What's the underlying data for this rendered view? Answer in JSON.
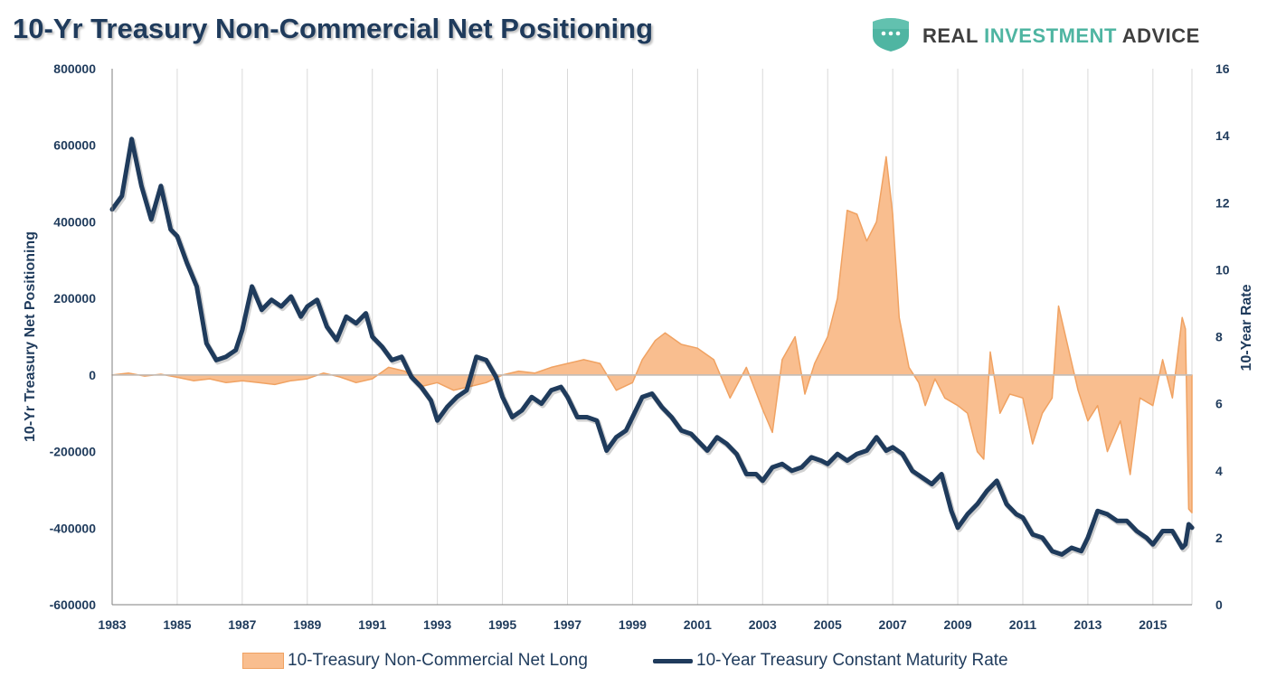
{
  "header": {
    "title": "10-Yr Treasury Non-Commercial Net Positioning",
    "brand": {
      "word1": "REAL",
      "word2": "INVESTMENT",
      "word3": "ADVICE"
    }
  },
  "colors": {
    "navy": "#1f3b5c",
    "orange_fill": "#f9be8f",
    "orange_line": "#f0a262",
    "grid": "#d9d9d9",
    "brand_teal": "#4fb5a2"
  },
  "chart_data": {
    "type": "area",
    "title": "10-Yr Treasury Non-Commercial Net Positioning",
    "ylabel_left": "10-Yr Treasury Net Positioning",
    "ylabel_right": "10-Year Rate",
    "xlim": [
      1983,
      2016.2
    ],
    "ylim_left": [
      -600000,
      800000
    ],
    "ylim_right": [
      0,
      16
    ],
    "x_ticks": [
      "1983",
      "1985",
      "1987",
      "1989",
      "1991",
      "1993",
      "1995",
      "1997",
      "1999",
      "2001",
      "2003",
      "2005",
      "2007",
      "2009",
      "2011",
      "2013",
      "2015"
    ],
    "y_ticks_left": [
      "800000",
      "600000",
      "400000",
      "200000",
      "0",
      "-200000",
      "-400000",
      "-600000"
    ],
    "y_ticks_right": [
      "16",
      "14",
      "12",
      "10",
      "8",
      "6",
      "4",
      "2",
      "0"
    ],
    "series": [
      {
        "name": "10-Treasury Non-Commercial Net Long",
        "axis": "left",
        "style": "area",
        "x": [
          1983.0,
          1983.5,
          1984.0,
          1984.5,
          1985.0,
          1985.5,
          1986.0,
          1986.5,
          1987.0,
          1987.5,
          1988.0,
          1988.5,
          1989.0,
          1989.5,
          1990.0,
          1990.5,
          1991.0,
          1991.5,
          1992.0,
          1992.5,
          1993.0,
          1993.5,
          1994.0,
          1994.5,
          1995.0,
          1995.5,
          1996.0,
          1996.5,
          1997.0,
          1997.5,
          1998.0,
          1998.5,
          1999.0,
          1999.3,
          1999.7,
          2000.0,
          2000.5,
          2001.0,
          2001.5,
          2002.0,
          2002.5,
          2003.0,
          2003.3,
          2003.6,
          2004.0,
          2004.3,
          2004.6,
          2005.0,
          2005.3,
          2005.6,
          2005.9,
          2006.2,
          2006.5,
          2006.8,
          2007.0,
          2007.2,
          2007.5,
          2007.8,
          2008.0,
          2008.3,
          2008.6,
          2009.0,
          2009.3,
          2009.6,
          2009.8,
          2010.0,
          2010.3,
          2010.6,
          2011.0,
          2011.3,
          2011.6,
          2011.9,
          2012.1,
          2012.4,
          2012.7,
          2013.0,
          2013.3,
          2013.6,
          2014.0,
          2014.3,
          2014.6,
          2015.0,
          2015.3,
          2015.6,
          2015.9,
          2016.0,
          2016.1,
          2016.2
        ],
        "y": [
          0,
          5000,
          -3000,
          2000,
          -6000,
          -15000,
          -10000,
          -20000,
          -15000,
          -20000,
          -25000,
          -15000,
          -10000,
          5000,
          -5000,
          -20000,
          -10000,
          20000,
          10000,
          -30000,
          -20000,
          -40000,
          -30000,
          -20000,
          0,
          10000,
          5000,
          20000,
          30000,
          40000,
          30000,
          -40000,
          -20000,
          40000,
          90000,
          110000,
          80000,
          70000,
          40000,
          -60000,
          20000,
          -90000,
          -150000,
          40000,
          100000,
          -50000,
          30000,
          100000,
          200000,
          430000,
          420000,
          350000,
          400000,
          570000,
          420000,
          150000,
          20000,
          -20000,
          -80000,
          -10000,
          -60000,
          -80000,
          -100000,
          -200000,
          -220000,
          60000,
          -100000,
          -50000,
          -60000,
          -180000,
          -100000,
          -60000,
          180000,
          70000,
          -40000,
          -120000,
          -80000,
          -200000,
          -120000,
          -260000,
          -60000,
          -80000,
          40000,
          -60000,
          150000,
          120000,
          -350000,
          -360000
        ]
      },
      {
        "name": "10-Year Treasury Constant Maturity Rate",
        "axis": "right",
        "style": "line",
        "x": [
          1983.0,
          1983.3,
          1983.6,
          1983.9,
          1984.2,
          1984.5,
          1984.8,
          1985.0,
          1985.3,
          1985.6,
          1985.9,
          1986.2,
          1986.5,
          1986.8,
          1987.0,
          1987.3,
          1987.6,
          1987.9,
          1988.2,
          1988.5,
          1988.8,
          1989.0,
          1989.3,
          1989.6,
          1989.9,
          1990.2,
          1990.5,
          1990.8,
          1991.0,
          1991.3,
          1991.6,
          1991.9,
          1992.2,
          1992.5,
          1992.8,
          1993.0,
          1993.3,
          1993.6,
          1993.9,
          1994.2,
          1994.5,
          1994.8,
          1995.0,
          1995.3,
          1995.6,
          1995.9,
          1996.2,
          1996.5,
          1996.8,
          1997.0,
          1997.3,
          1997.6,
          1997.9,
          1998.2,
          1998.5,
          1998.8,
          1999.0,
          1999.3,
          1999.6,
          1999.9,
          2000.2,
          2000.5,
          2000.8,
          2001.0,
          2001.3,
          2001.6,
          2001.9,
          2002.2,
          2002.5,
          2002.8,
          2003.0,
          2003.3,
          2003.6,
          2003.9,
          2004.2,
          2004.5,
          2004.8,
          2005.0,
          2005.3,
          2005.6,
          2005.9,
          2006.2,
          2006.5,
          2006.8,
          2007.0,
          2007.3,
          2007.6,
          2007.9,
          2008.2,
          2008.5,
          2008.8,
          2009.0,
          2009.3,
          2009.6,
          2009.9,
          2010.2,
          2010.5,
          2010.8,
          2011.0,
          2011.3,
          2011.6,
          2011.9,
          2012.2,
          2012.5,
          2012.8,
          2013.0,
          2013.3,
          2013.6,
          2013.9,
          2014.2,
          2014.5,
          2014.8,
          2015.0,
          2015.3,
          2015.6,
          2015.9,
          2016.0,
          2016.1,
          2016.2
        ],
        "y": [
          11.8,
          12.2,
          13.9,
          12.5,
          11.5,
          12.5,
          11.2,
          11.0,
          10.2,
          9.5,
          7.8,
          7.3,
          7.4,
          7.6,
          8.2,
          9.5,
          8.8,
          9.1,
          8.9,
          9.2,
          8.6,
          8.9,
          9.1,
          8.3,
          7.9,
          8.6,
          8.4,
          8.7,
          8.0,
          7.7,
          7.3,
          7.4,
          6.8,
          6.5,
          6.1,
          5.5,
          5.9,
          6.2,
          6.4,
          7.4,
          7.3,
          6.8,
          6.2,
          5.6,
          5.8,
          6.2,
          6.0,
          6.4,
          6.5,
          6.2,
          5.6,
          5.6,
          5.5,
          4.6,
          5.0,
          5.2,
          5.6,
          6.2,
          6.3,
          5.9,
          5.6,
          5.2,
          5.1,
          4.9,
          4.6,
          5.0,
          4.8,
          4.5,
          3.9,
          3.9,
          3.7,
          4.1,
          4.2,
          4.0,
          4.1,
          4.4,
          4.3,
          4.2,
          4.5,
          4.3,
          4.5,
          4.6,
          5.0,
          4.6,
          4.7,
          4.5,
          4.0,
          3.8,
          3.6,
          3.9,
          2.8,
          2.3,
          2.7,
          3.0,
          3.4,
          3.7,
          3.0,
          2.7,
          2.6,
          2.1,
          2.0,
          1.6,
          1.5,
          1.7,
          1.6,
          2.0,
          2.8,
          2.7,
          2.5,
          2.5,
          2.2,
          2.0,
          1.8,
          2.2,
          2.2,
          1.7,
          1.8,
          2.4,
          2.3
        ]
      }
    ]
  },
  "legend": {
    "area_label": "10-Treasury Non-Commercial Net Long",
    "line_label": "10-Year Treasury Constant Maturity Rate"
  }
}
